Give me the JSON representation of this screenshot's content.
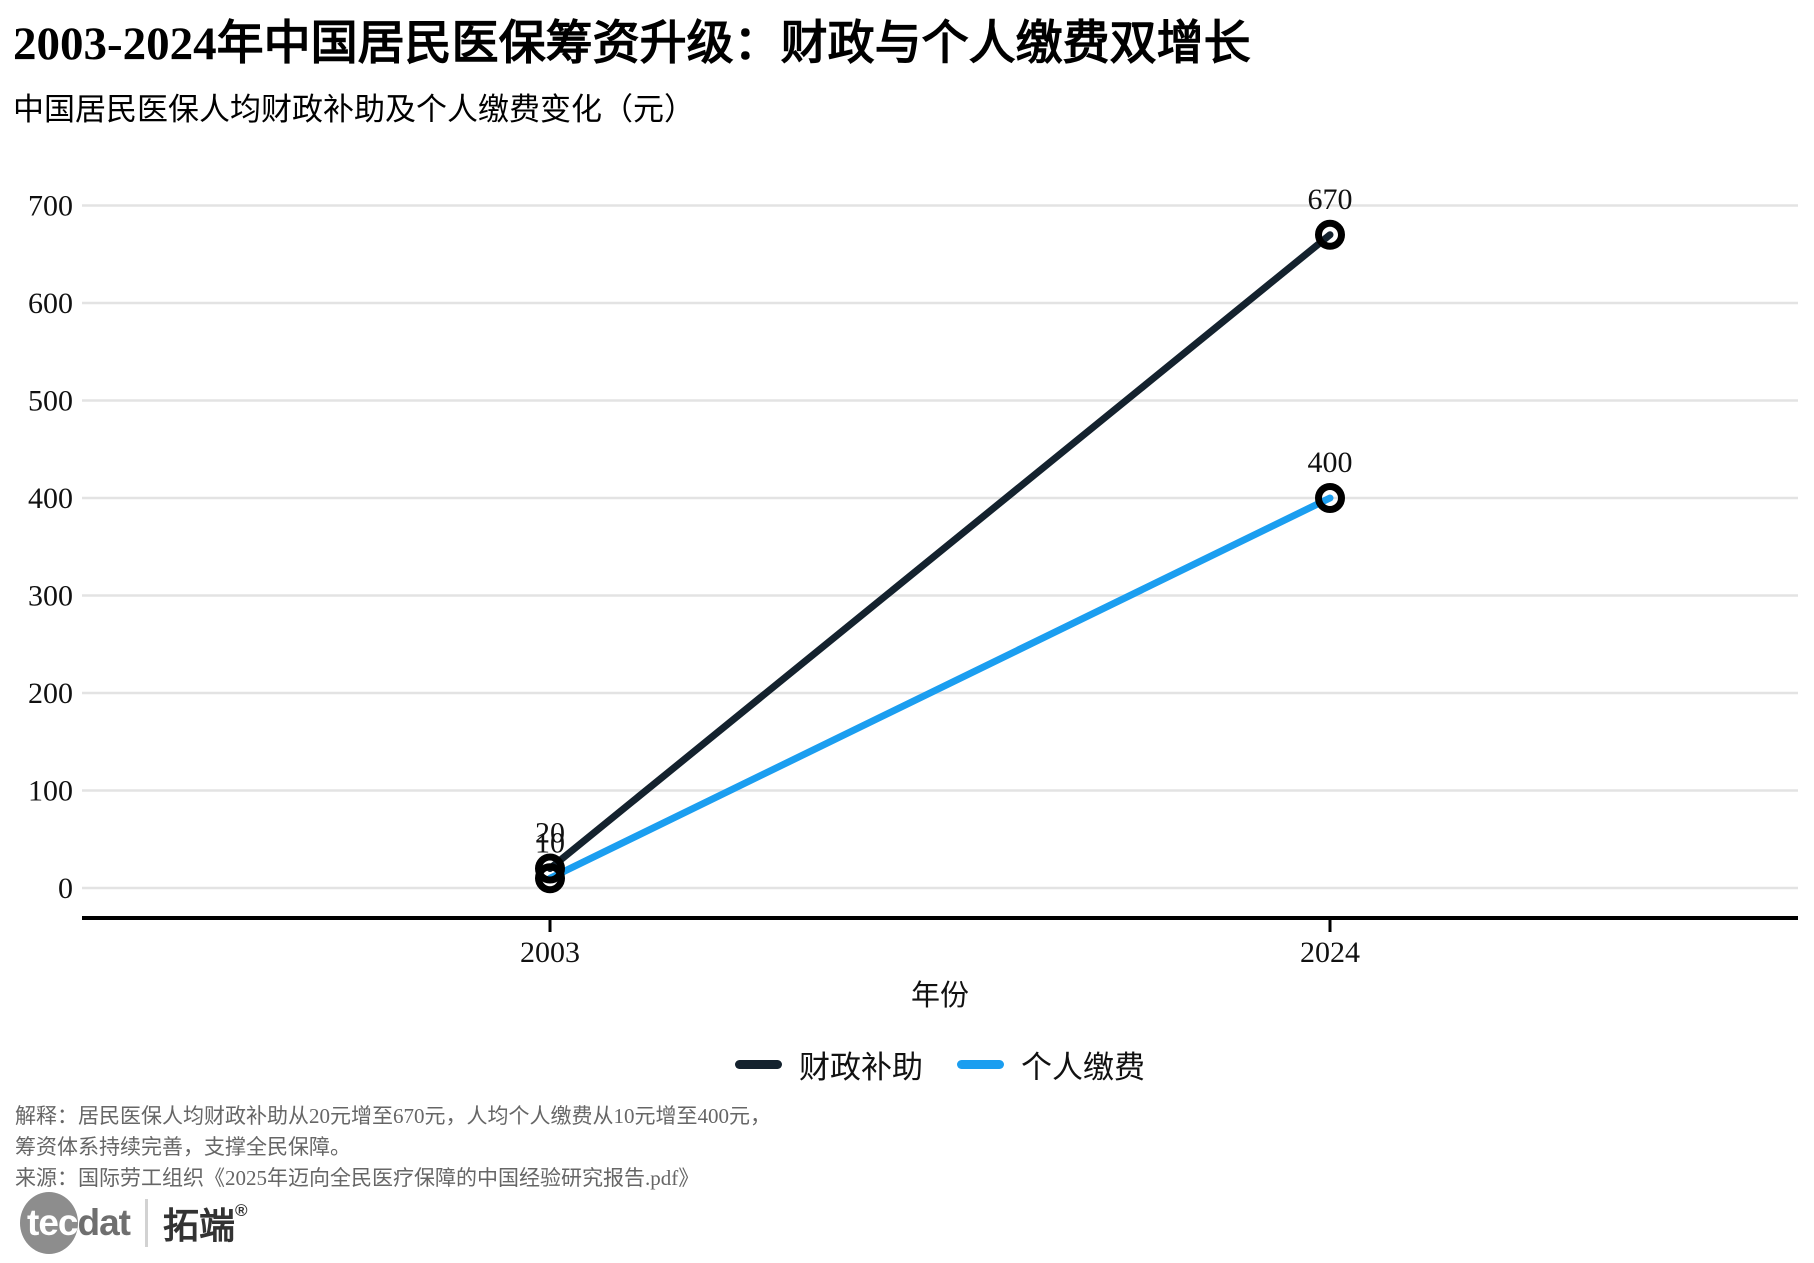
{
  "header": {
    "title": "2003-2024年中国居民医保筹资升级：财政与个人缴费双增长",
    "subtitle": "中国居民医保人均财政补助及个人缴费变化（元）"
  },
  "chart_data": {
    "type": "line",
    "categories": [
      "2003",
      "2024"
    ],
    "series": [
      {
        "name": "财政补助",
        "values": [
          20,
          670
        ],
        "color": "#14222E"
      },
      {
        "name": "个人缴费",
        "values": [
          10,
          400
        ],
        "color": "#1B9EF0"
      }
    ],
    "xlabel": "年份",
    "ylabel": "",
    "ylim": [
      0,
      700
    ],
    "yticks": [
      0,
      100,
      200,
      300,
      400,
      500,
      600,
      700
    ],
    "grid": "horizontal",
    "gridline_color": "#e3e3e3",
    "axis_color": "#000000",
    "marker": "open-circle",
    "marker_color": "#000000",
    "data_labels": true,
    "legend_position": "bottom-center"
  },
  "footer": {
    "note_line1": "解释：居民医保人均财政补助从20元增至670元，人均个人缴费从10元增至400元，",
    "note_line2": "筹资体系持续完善，支撑全民保障。",
    "source": "来源：国际劳工组织《2025年迈向全民医疗保障的中国经验研究报告.pdf》"
  },
  "logo": {
    "part1": "tec",
    "part2": "dat",
    "part3": "拓端",
    "reg": "®"
  }
}
